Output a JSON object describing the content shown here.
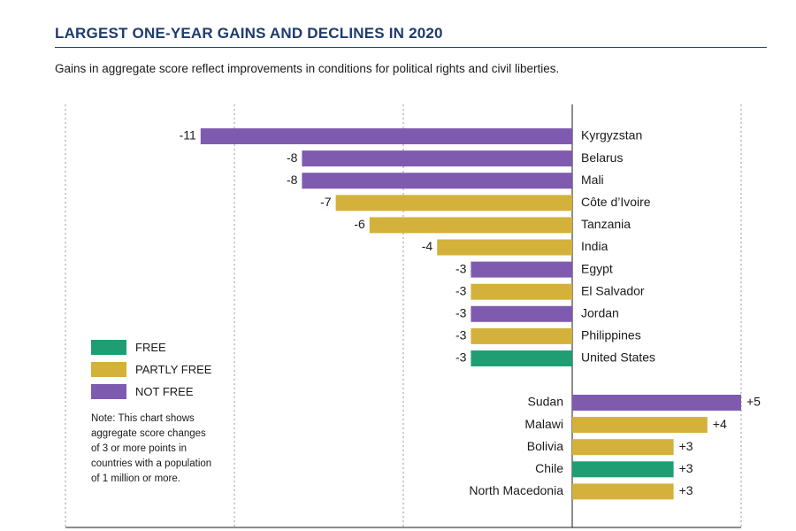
{
  "header": {
    "title": "LARGEST ONE-YEAR GAINS AND DECLINES IN 2020",
    "subtitle": "Gains in aggregate score reflect improvements in conditions for political rights and civil liberties."
  },
  "legend": [
    {
      "label": "FREE",
      "status": "free"
    },
    {
      "label": "PARTLY FREE",
      "status": "partly_free"
    },
    {
      "label": "NOT FREE",
      "status": "not_free"
    }
  ],
  "note": "Note: This chart shows aggregate score changes of 3 or more points in countries with a population of 1 million or more.",
  "colors": {
    "free": "#1f9e74",
    "partly_free": "#d4b13a",
    "not_free": "#7f5bb0",
    "title": "#1f3b6e"
  },
  "chart_data": {
    "type": "bar",
    "orientation": "horizontal",
    "xlim": [
      -15,
      5
    ],
    "grid": true,
    "declines": [
      {
        "country": "Kyrgyzstan",
        "value": -11,
        "label": "-11",
        "status": "not_free"
      },
      {
        "country": "Belarus",
        "value": -8,
        "label": "-8",
        "status": "not_free"
      },
      {
        "country": "Mali",
        "value": -8,
        "label": "-8",
        "status": "not_free"
      },
      {
        "country": "Côte d’Ivoire",
        "value": -7,
        "label": "-7",
        "status": "partly_free"
      },
      {
        "country": "Tanzania",
        "value": -6,
        "label": "-6",
        "status": "partly_free"
      },
      {
        "country": "India",
        "value": -4,
        "label": "-4",
        "status": "partly_free"
      },
      {
        "country": "Egypt",
        "value": -3,
        "label": "-3",
        "status": "not_free"
      },
      {
        "country": "El Salvador",
        "value": -3,
        "label": "-3",
        "status": "partly_free"
      },
      {
        "country": "Jordan",
        "value": -3,
        "label": "-3",
        "status": "not_free"
      },
      {
        "country": "Philippines",
        "value": -3,
        "label": "-3",
        "status": "partly_free"
      },
      {
        "country": "United States",
        "value": -3,
        "label": "-3",
        "status": "free"
      }
    ],
    "gains": [
      {
        "country": "Sudan",
        "value": 5,
        "label": "+5",
        "status": "not_free"
      },
      {
        "country": "Malawi",
        "value": 4,
        "label": "+4",
        "status": "partly_free"
      },
      {
        "country": "Bolivia",
        "value": 3,
        "label": "+3",
        "status": "partly_free"
      },
      {
        "country": "Chile",
        "value": 3,
        "label": "+3",
        "status": "free"
      },
      {
        "country": "North Macedonia",
        "value": 3,
        "label": "+3",
        "status": "partly_free"
      }
    ]
  }
}
